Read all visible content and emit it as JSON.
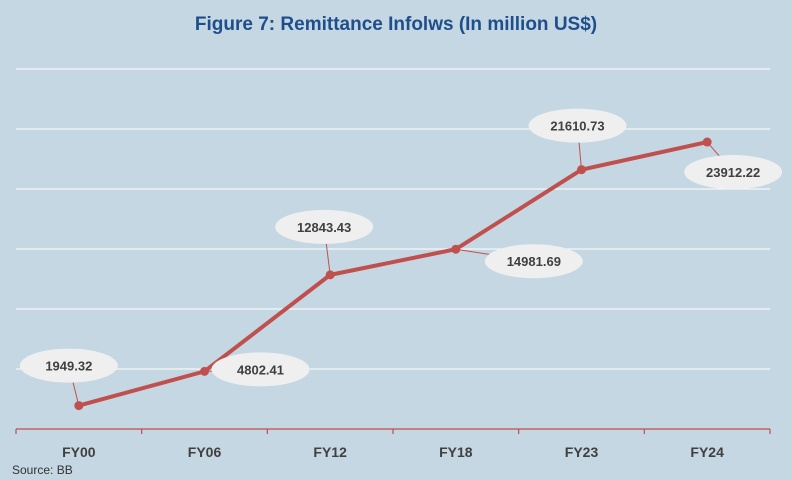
{
  "title": "Figure 7: Remittance Infolws (In million US$)",
  "source": "Source: BB",
  "colors": {
    "line": "#c0504d",
    "grid": "#ffffff",
    "axis": "#c0504d",
    "bubble": "#efefef"
  },
  "chart_data": {
    "type": "line",
    "categories": [
      "FY00",
      "FY06",
      "FY12",
      "FY18",
      "FY23",
      "FY24"
    ],
    "series": [
      {
        "values": [
          1949.32,
          4802.41,
          12843.43,
          14981.69,
          21610.73,
          23912.22
        ]
      }
    ],
    "data_labels": [
      "1949.32",
      "4802.41",
      "12843.43",
      "14981.69",
      "21610.73",
      "23912.22"
    ],
    "ylim": [
      0,
      30000
    ],
    "grid": true,
    "y_tick_labels_shown": false
  }
}
